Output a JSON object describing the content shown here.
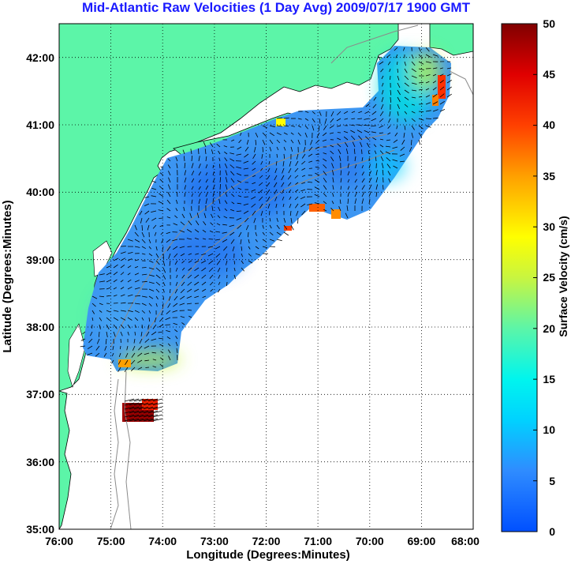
{
  "title": "Mid-Atlantic Raw Velocities (1 Day Avg) 2009/07/17 1900 GMT",
  "xlabel": "Longitude (Degrees:Minutes)",
  "ylabel": "Latitude (Degrees:Minutes)",
  "colorbar_label": "Surface Velocity (cm/s)",
  "x_ticks": [
    "76:00",
    "75:00",
    "74:00",
    "73:00",
    "72:00",
    "71:00",
    "70:00",
    "69:00",
    "68:00"
  ],
  "y_ticks": [
    "42:00",
    "41:00",
    "40:00",
    "39:00",
    "38:00",
    "37:00",
    "36:00",
    "35:00"
  ],
  "colorbar_ticks": [
    "50",
    "45",
    "40",
    "35",
    "30",
    "25",
    "20",
    "15",
    "10",
    "5",
    "0"
  ],
  "colors": {
    "land": "#5cf5a8",
    "title": "#1a1aff",
    "grid": "#000000",
    "bathymetry": "#8a8a8a"
  },
  "chart_data": {
    "type": "heatmap",
    "title": "Mid-Atlantic Raw Velocities (1 Day Avg) 2009/07/17 1900 GMT",
    "xlabel": "Longitude (Degrees:Minutes)",
    "ylabel": "Latitude (Degrees:Minutes)",
    "xlim": [
      -76,
      -68
    ],
    "ylim": [
      35,
      42.5
    ],
    "clim": [
      0,
      50
    ],
    "colormap": "jet",
    "grid": true,
    "colorbar_label": "Surface Velocity (cm/s)"
  }
}
